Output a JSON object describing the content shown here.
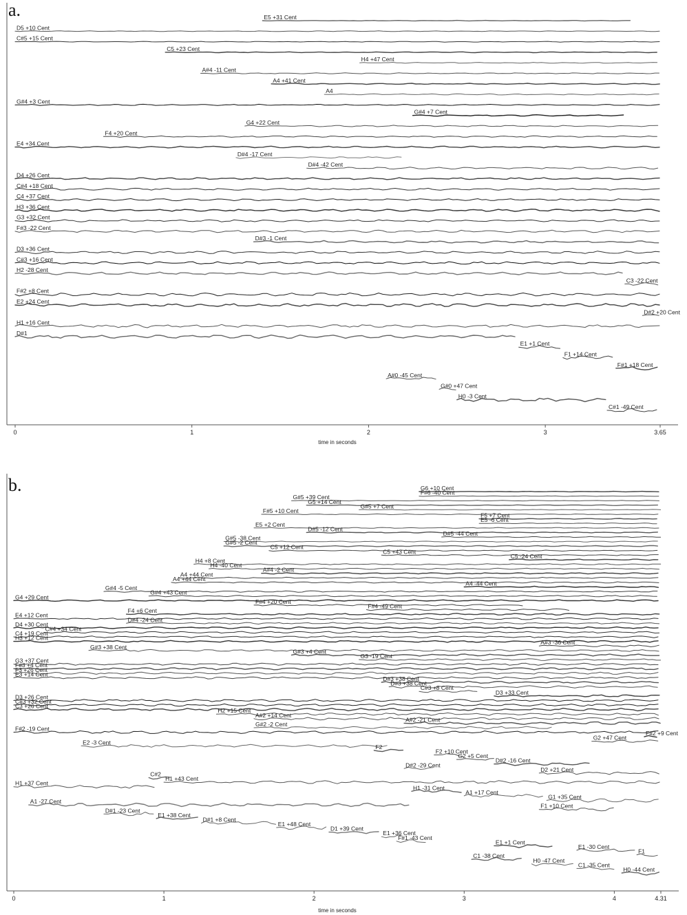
{
  "chart_data": [
    {
      "panel": "a.",
      "type": "line",
      "xlabel": "time in seconds",
      "xlim": [
        0,
        3.65
      ],
      "ticks": [
        {
          "v": 0,
          "t": "0"
        },
        {
          "v": 1,
          "t": "1"
        },
        {
          "v": 2,
          "t": "2"
        },
        {
          "v": 3,
          "t": "3"
        },
        {
          "v": 3.65,
          "t": "3.65"
        }
      ],
      "traces": [
        {
          "label": "E5 +31 Cent",
          "start": 1.4,
          "end": 3.5,
          "shade": "#666"
        },
        {
          "label": "D5 +10 Cent",
          "start": 0,
          "end": 3.65,
          "shade": "#555"
        },
        {
          "label": "C#5 +15 Cent",
          "start": 0,
          "end": 3.65,
          "shade": "#333"
        },
        {
          "label": "C5 +23 Cent",
          "start": 0.85,
          "end": 3.65,
          "shade": "#444"
        },
        {
          "label": "H4 +47 Cent",
          "start": 1.95,
          "end": 3.65,
          "shade": "#666"
        },
        {
          "label": "A#4 -11 Cent",
          "start": 1.05,
          "end": 3.65,
          "shade": "#555"
        },
        {
          "label": "A4 +41 Cent",
          "start": 1.45,
          "end": 3.65,
          "shade": "#444"
        },
        {
          "label": "A4",
          "start": 1.75,
          "end": 3.65,
          "shade": "#666"
        },
        {
          "label": "G#4 +3 Cent",
          "start": 0,
          "end": 3.65,
          "shade": "#111"
        },
        {
          "label": "G#4 +7 Cent",
          "start": 2.25,
          "end": 3.45,
          "shade": "#222"
        },
        {
          "label": "G4 +22 Cent",
          "start": 1.3,
          "end": 3.65,
          "shade": "#555"
        },
        {
          "label": "F4 +20 Cent",
          "start": 0.5,
          "end": 3.65,
          "shade": "#444"
        },
        {
          "label": "E4 +34 Cent",
          "start": 0,
          "end": 3.65,
          "shade": "#444"
        },
        {
          "label": "D#4 -17 Cent",
          "start": 1.25,
          "end": 2.2,
          "shade": "#777"
        },
        {
          "label": "D#4 -42 Cent",
          "start": 1.65,
          "end": 3.65,
          "shade": "#555"
        },
        {
          "label": "D4 +26 Cent",
          "start": 0,
          "end": 3.65,
          "shade": "#444"
        },
        {
          "label": "C#4 +18 Cent",
          "start": 0,
          "end": 3.65,
          "shade": "#333"
        },
        {
          "label": "C4 +37 Cent",
          "start": 0,
          "end": 3.65,
          "shade": "#222"
        },
        {
          "label": "H3 +36 Cent",
          "start": 0,
          "end": 3.65,
          "shade": "#333"
        },
        {
          "label": "G3 +32 Cent",
          "start": 0,
          "end": 3.65,
          "shade": "#333"
        },
        {
          "label": "F#3 -22 Cent",
          "start": 0,
          "end": 3.65,
          "shade": "#555"
        },
        {
          "label": "D#3 -1 Cent",
          "start": 1.35,
          "end": 3.65,
          "shade": "#666"
        },
        {
          "label": "D3 +36 Cent",
          "start": 0,
          "end": 3.65,
          "shade": "#333"
        },
        {
          "label": "C#3 +16 Cent",
          "start": 0,
          "end": 3.65,
          "shade": "#111"
        },
        {
          "label": "H2 -28 Cent",
          "start": 0,
          "end": 3.45,
          "shade": "#777"
        },
        {
          "label": "C3 -22 Cent",
          "start": 3.45,
          "end": 3.65,
          "shade": "#555"
        },
        {
          "label": "F#2 +8 Cent",
          "start": 0,
          "end": 3.65,
          "shade": "#222"
        },
        {
          "label": "E2 +24 Cent",
          "start": 0,
          "end": 3.65,
          "shade": "#444"
        },
        {
          "label": "D#2 +20 Cent",
          "start": 3.55,
          "end": 3.65,
          "shade": "#555"
        },
        {
          "label": "H1 +16 Cent",
          "start": 0,
          "end": 3.65,
          "shade": "#555"
        },
        {
          "label": "D#1",
          "start": 0,
          "end": 2.85,
          "shade": "#666"
        },
        {
          "label": "E1 +1 Cent",
          "start": 2.85,
          "end": 3.1,
          "shade": "#444"
        },
        {
          "label": "F1 +14 Cent",
          "start": 3.1,
          "end": 3.4,
          "shade": "#444"
        },
        {
          "label": "F#1 +18 Cent",
          "start": 3.4,
          "end": 3.65,
          "shade": "#444"
        },
        {
          "label": "A#0 -45 Cent",
          "start": 2.1,
          "end": 2.4,
          "shade": "#555"
        },
        {
          "label": "G#0 +47 Cent",
          "start": 2.4,
          "end": 2.5,
          "shade": "#555"
        },
        {
          "label": "H0 -3 Cent",
          "start": 2.5,
          "end": 3.35,
          "shade": "#555"
        },
        {
          "label": "C#1 -49 Cent",
          "start": 3.35,
          "end": 3.65,
          "shade": "#444"
        }
      ]
    },
    {
      "panel": "b.",
      "type": "line",
      "xlabel": "time in seconds",
      "xlim": [
        0,
        4.31
      ],
      "ticks": [
        {
          "v": 0,
          "t": "0"
        },
        {
          "v": 1,
          "t": "1"
        },
        {
          "v": 2,
          "t": "2"
        },
        {
          "v": 3,
          "t": "3"
        },
        {
          "v": 4,
          "t": "4"
        },
        {
          "v": 4.31,
          "t": "4.31"
        }
      ],
      "traces": [
        {
          "label": "G6 +10 Cent",
          "start": 2.7,
          "end": 4.31,
          "shade": "#444"
        },
        {
          "label": "F#6 -40 Cent",
          "start": 2.7,
          "end": 4.31,
          "shade": "#555"
        },
        {
          "label": "G#5 +39 Cent",
          "start": 1.85,
          "end": 4.31,
          "shade": "#555"
        },
        {
          "label": "G5 +14 Cent",
          "start": 1.95,
          "end": 4.31,
          "shade": "#666"
        },
        {
          "label": "G#5 +7 Cent",
          "start": 2.3,
          "end": 4.31,
          "shade": "#666"
        },
        {
          "label": "F#5 +10 Cent",
          "start": 1.65,
          "end": 4.31,
          "shade": "#555"
        },
        {
          "label": "F5 +7 Cent",
          "start": 3.1,
          "end": 4.31,
          "shade": "#555"
        },
        {
          "label": "E5 -6 Cent",
          "start": 3.1,
          "end": 4.31,
          "shade": "#555"
        },
        {
          "label": "E5 +2 Cent",
          "start": 1.6,
          "end": 4.31,
          "shade": "#555"
        },
        {
          "label": "D#5 -12 Cent",
          "start": 1.95,
          "end": 4.31,
          "shade": "#555"
        },
        {
          "label": "D#5 -44 Cent",
          "start": 2.85,
          "end": 4.31,
          "shade": "#444"
        },
        {
          "label": "G#5 -38 Cent",
          "start": 1.4,
          "end": 4.31,
          "shade": "#666"
        },
        {
          "label": "G#5 -2 Cent",
          "start": 1.4,
          "end": 4.31,
          "shade": "#666"
        },
        {
          "label": "C5 +12 Cent",
          "start": 1.7,
          "end": 4.31,
          "shade": "#444"
        },
        {
          "label": "C5 +43 Cent",
          "start": 2.45,
          "end": 4.31,
          "shade": "#444"
        },
        {
          "label": "C5 -24 Cent",
          "start": 3.3,
          "end": 4.31,
          "shade": "#444"
        },
        {
          "label": "H4 +8 Cent",
          "start": 1.2,
          "end": 4.31,
          "shade": "#555"
        },
        {
          "label": "H4 -40 Cent",
          "start": 1.3,
          "end": 4.31,
          "shade": "#555"
        },
        {
          "label": "A#4 -2 Cent",
          "start": 1.65,
          "end": 4.31,
          "shade": "#444"
        },
        {
          "label": "A4 +44 Cent",
          "start": 1.1,
          "end": 4.31,
          "shade": "#444"
        },
        {
          "label": "A4 +44 Cent",
          "start": 1.05,
          "end": 4.31,
          "shade": "#444"
        },
        {
          "label": "A4 -44 Cent",
          "start": 3.0,
          "end": 4.31,
          "shade": "#333"
        },
        {
          "label": "G#4 -5 Cent",
          "start": 0.6,
          "end": 4.31,
          "shade": "#444"
        },
        {
          "label": "G#4 +43 Cent",
          "start": 0.9,
          "end": 4.31,
          "shade": "#444"
        },
        {
          "label": "G4 +29 Cent",
          "start": 0,
          "end": 4.31,
          "shade": "#333"
        },
        {
          "label": "F#4 +20 Cent",
          "start": 1.6,
          "end": 3.4,
          "shade": "#444"
        },
        {
          "label": "F#4 -49 Cent",
          "start": 2.35,
          "end": 3.7,
          "shade": "#444"
        },
        {
          "label": "F4 +6 Cent",
          "start": 0.75,
          "end": 4.31,
          "shade": "#444"
        },
        {
          "label": "E4 +12 Cent",
          "start": 0,
          "end": 4.31,
          "shade": "#333"
        },
        {
          "label": "D#4 -24 Cent",
          "start": 0.75,
          "end": 4.31,
          "shade": "#555"
        },
        {
          "label": "D4 +30 Cent",
          "start": 0,
          "end": 4.31,
          "shade": "#333"
        },
        {
          "label": "C#4 +34 Cent",
          "start": 0.2,
          "end": 4.31,
          "shade": "#333"
        },
        {
          "label": "C4 +19 Cent",
          "start": 0,
          "end": 4.31,
          "shade": "#333"
        },
        {
          "label": "H3 +12 Cent",
          "start": 0,
          "end": 4.31,
          "shade": "#333"
        },
        {
          "label": "A#3 -36 Cent",
          "start": 3.5,
          "end": 4.31,
          "shade": "#444"
        },
        {
          "label": "G#3 +38 Cent",
          "start": 0.5,
          "end": 4.31,
          "shade": "#555"
        },
        {
          "label": "G#3 +4 Cent",
          "start": 1.85,
          "end": 4.31,
          "shade": "#555"
        },
        {
          "label": "G3 -19 Cent",
          "start": 2.3,
          "end": 4.31,
          "shade": "#555"
        },
        {
          "label": "G3 +37 Cent",
          "start": 0,
          "end": 4.31,
          "shade": "#444"
        },
        {
          "label": "F#3 +4 Cent",
          "start": 0,
          "end": 4.31,
          "shade": "#555"
        },
        {
          "label": "F3 +26 Cent",
          "start": 0,
          "end": 4.31,
          "shade": "#555"
        },
        {
          "label": "E3 +14 Cent",
          "start": 0,
          "end": 4.31,
          "shade": "#444"
        },
        {
          "label": "D#3 +38 Cent",
          "start": 2.45,
          "end": 4.31,
          "shade": "#555"
        },
        {
          "label": "D#3 +38 Cent",
          "start": 2.5,
          "end": 4.31,
          "shade": "#555"
        },
        {
          "label": "C#3 +8 Cent",
          "start": 2.7,
          "end": 3.1,
          "shade": "#555"
        },
        {
          "label": "D3 +33 Cent",
          "start": 3.2,
          "end": 4.31,
          "shade": "#444"
        },
        {
          "label": "D3 +26 Cent",
          "start": 0,
          "end": 4.31,
          "shade": "#222"
        },
        {
          "label": "C#3 +32 Cent",
          "start": 0,
          "end": 4.31,
          "shade": "#222"
        },
        {
          "label": "C3 +26 Cent",
          "start": 0,
          "end": 4.31,
          "shade": "#444"
        },
        {
          "label": "H2 +15 Cent",
          "start": 1.35,
          "end": 4.31,
          "shade": "#555"
        },
        {
          "label": "A#2 +14 Cent",
          "start": 1.6,
          "end": 4.31,
          "shade": "#555"
        },
        {
          "label": "A#2 -21 Cent",
          "start": 2.6,
          "end": 4.31,
          "shade": "#555"
        },
        {
          "label": "G#2 -2 Cent",
          "start": 1.6,
          "end": 3.6,
          "shade": "#666"
        },
        {
          "label": "F#2 -19 Cent",
          "start": 0,
          "end": 4.31,
          "shade": "#222"
        },
        {
          "label": "F#2 +9 Cent",
          "start": 4.2,
          "end": 4.31,
          "shade": "#333"
        },
        {
          "label": "G2 +47 Cent",
          "start": 3.85,
          "end": 4.31,
          "shade": "#555"
        },
        {
          "label": "E2 -3 Cent",
          "start": 0.45,
          "end": 2.5,
          "shade": "#666"
        },
        {
          "label": "F2",
          "start": 2.4,
          "end": 2.6,
          "shade": "#555"
        },
        {
          "label": "F2 +10 Cent",
          "start": 2.8,
          "end": 3.0,
          "shade": "#555"
        },
        {
          "label": "G2 +5 Cent",
          "start": 2.95,
          "end": 3.2,
          "shade": "#555"
        },
        {
          "label": "D#2 -16 Cent",
          "start": 3.2,
          "end": 3.85,
          "shade": "#555"
        },
        {
          "label": "D#2 -29 Cent",
          "start": 2.6,
          "end": 2.8,
          "shade": "#666"
        },
        {
          "label": "D2 +21 Cent",
          "start": 3.5,
          "end": 4.31,
          "shade": "#555"
        },
        {
          "label": "C#2",
          "start": 0.9,
          "end": 1.05,
          "shade": "#666"
        },
        {
          "label": "H1 +43 Cent",
          "start": 1.0,
          "end": 4.31,
          "shade": "#555"
        },
        {
          "label": "H1 +37 Cent",
          "start": 0,
          "end": 0.95,
          "shade": "#555"
        },
        {
          "label": "H1 -31 Cent",
          "start": 2.65,
          "end": 3.0,
          "shade": "#666"
        },
        {
          "label": "A1 +17 Cent",
          "start": 3.0,
          "end": 3.55,
          "shade": "#666"
        },
        {
          "label": "G1 +35 Cent",
          "start": 3.55,
          "end": 4.31,
          "shade": "#666"
        },
        {
          "label": "A1 -27 Cent",
          "start": 0.1,
          "end": 2.65,
          "shade": "#777"
        },
        {
          "label": "F1 +10 Cent",
          "start": 3.5,
          "end": 4.0,
          "shade": "#555"
        },
        {
          "label": "D#1 -23 Cent",
          "start": 0.6,
          "end": 0.95,
          "shade": "#666"
        },
        {
          "label": "E1 +38 Cent",
          "start": 0.95,
          "end": 1.25,
          "shade": "#666"
        },
        {
          "label": "D#1 +8 Cent",
          "start": 1.25,
          "end": 1.75,
          "shade": "#666"
        },
        {
          "label": "E1 +48 Cent",
          "start": 1.75,
          "end": 2.1,
          "shade": "#666"
        },
        {
          "label": "D1 +39 Cent",
          "start": 2.1,
          "end": 2.45,
          "shade": "#777"
        },
        {
          "label": "E1 +36 Cent",
          "start": 2.45,
          "end": 2.6,
          "shade": "#666"
        },
        {
          "label": "F#1 -43 Cent",
          "start": 2.55,
          "end": 2.75,
          "shade": "#666"
        },
        {
          "label": "E1 +1 Cent",
          "start": 3.2,
          "end": 3.6,
          "shade": "#555"
        },
        {
          "label": "E1 -30 Cent",
          "start": 3.75,
          "end": 4.15,
          "shade": "#555"
        },
        {
          "label": "F1",
          "start": 4.15,
          "end": 4.31,
          "shade": "#555"
        },
        {
          "label": "C1 -38 Cent",
          "start": 3.05,
          "end": 3.4,
          "shade": "#666"
        },
        {
          "label": "H0 -47 Cent",
          "start": 3.45,
          "end": 3.75,
          "shade": "#666"
        },
        {
          "label": "C1 -35 Cent",
          "start": 3.75,
          "end": 4.0,
          "shade": "#666"
        },
        {
          "label": "H0 -44 Cent",
          "start": 4.05,
          "end": 4.31,
          "shade": "#666"
        }
      ]
    }
  ]
}
